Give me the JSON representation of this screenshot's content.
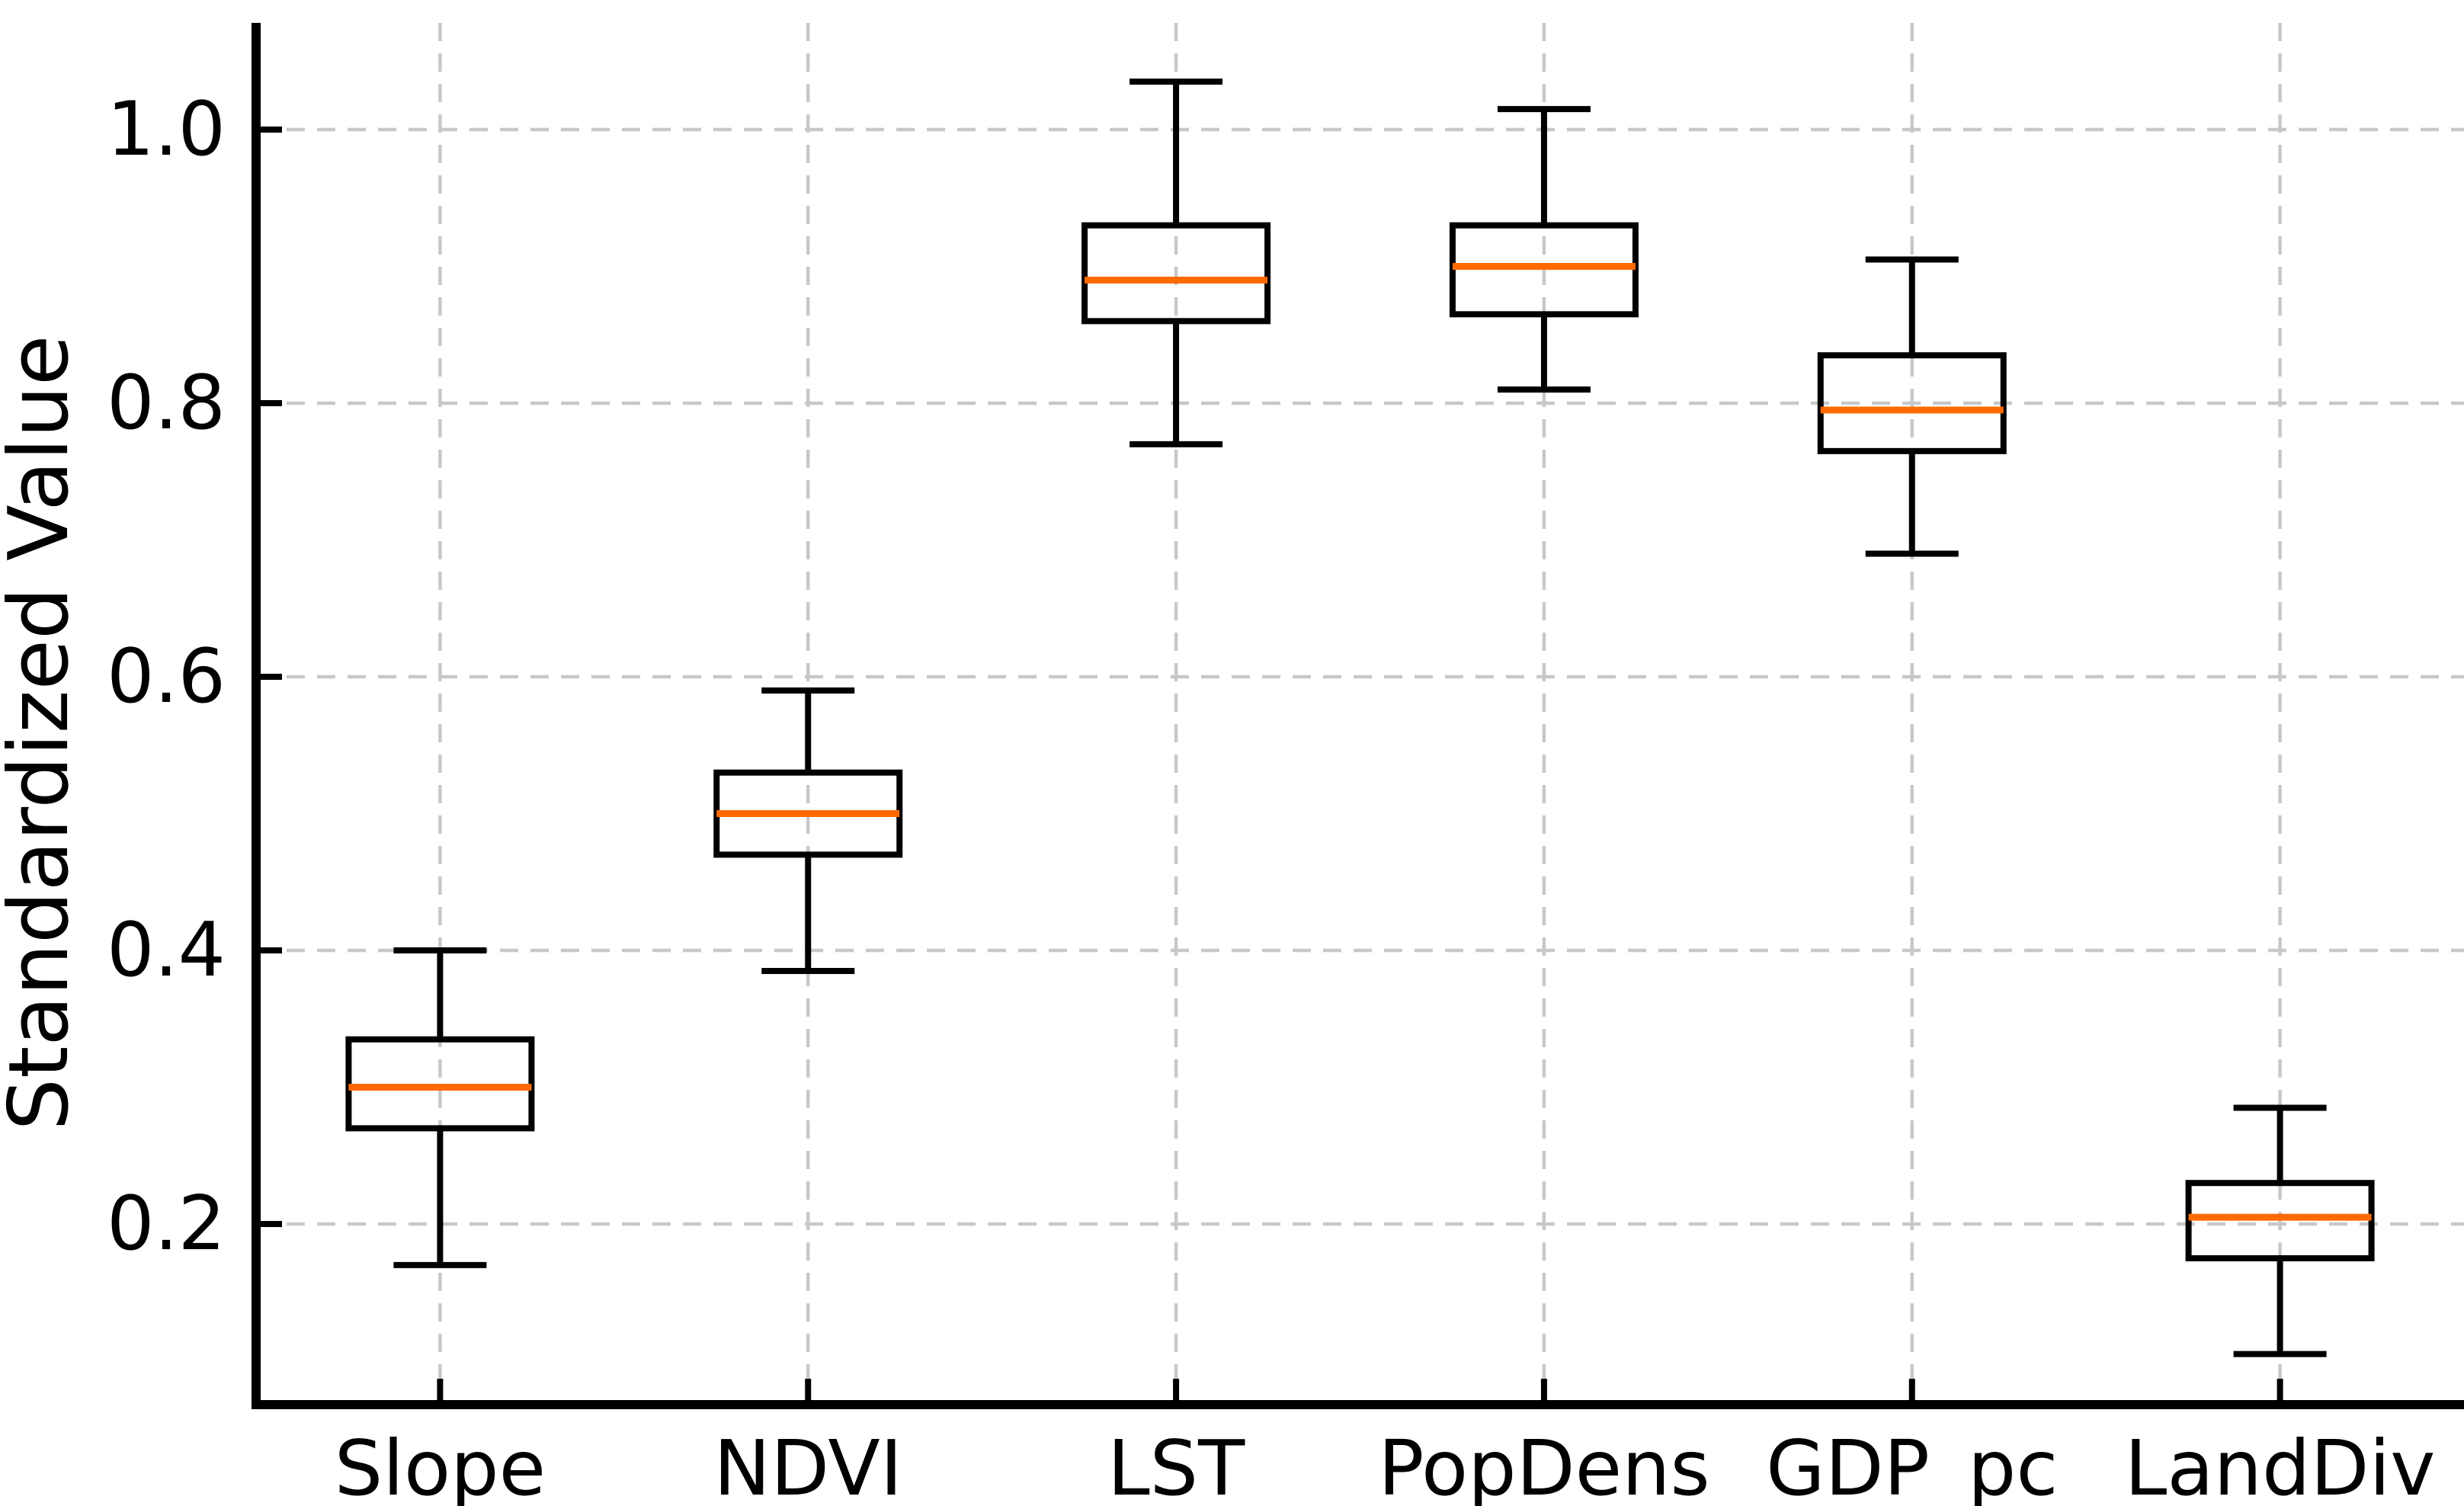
{
  "figure": {
    "background": "#ffffff",
    "description": "Box-and-whisker plot of six standardized variables"
  },
  "chart_data": {
    "type": "box",
    "title": "",
    "xlabel": "",
    "ylabel": "Standardized Value",
    "categories": [
      "Slope",
      "NDVI",
      "LST",
      "PopDens",
      "GDP_pc",
      "LandDiv"
    ],
    "yticks": [
      0.2,
      0.4,
      0.6,
      0.8,
      1.0
    ],
    "ytick_labels": [
      "0.2",
      "0.4",
      "0.6",
      "0.8",
      "1.0"
    ],
    "ylim": [
      0.068,
      1.078
    ],
    "grid": {
      "visible": true,
      "style": "dashed",
      "axes": "both"
    },
    "legend_position": "none",
    "series": [
      {
        "name": "Slope",
        "whisker_low": 0.17,
        "q1": 0.27,
        "median": 0.3,
        "q3": 0.335,
        "whisker_high": 0.4
      },
      {
        "name": "NDVI",
        "whisker_low": 0.385,
        "q1": 0.47,
        "median": 0.5,
        "q3": 0.53,
        "whisker_high": 0.59
      },
      {
        "name": "LST",
        "whisker_low": 0.77,
        "q1": 0.86,
        "median": 0.89,
        "q3": 0.93,
        "whisker_high": 1.035
      },
      {
        "name": "PopDens",
        "whisker_low": 0.81,
        "q1": 0.865,
        "median": 0.9,
        "q3": 0.93,
        "whisker_high": 1.015
      },
      {
        "name": "GDP_pc",
        "whisker_low": 0.69,
        "q1": 0.765,
        "median": 0.795,
        "q3": 0.835,
        "whisker_high": 0.905
      },
      {
        "name": "LandDiv",
        "whisker_low": 0.105,
        "q1": 0.175,
        "median": 0.205,
        "q3": 0.23,
        "whisker_high": 0.285
      }
    ],
    "colors": {
      "box_stroke": "#000000",
      "median": "#ff6a00",
      "grid": "#c8c8c8",
      "axis": "#000000",
      "text": "#000000",
      "background": "#ffffff"
    }
  }
}
